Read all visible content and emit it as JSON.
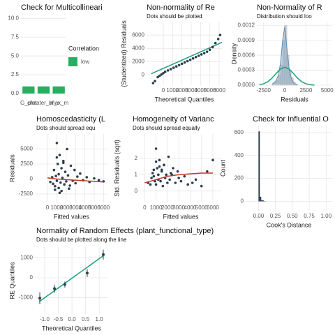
{
  "chart_data": [
    {
      "type": "bar",
      "title": "Check for Multicollineari",
      "categories": [
        "G_plot",
        "cheater_of_e",
        "lmax_m"
      ],
      "series": [
        {
          "name": "low",
          "color": "#27ae60",
          "values": [
            0.95,
            0.95,
            0.95
          ]
        }
      ],
      "legend_title": "Correlation",
      "ylim": [
        -0.55,
        10.4
      ],
      "yticks": [
        {
          "value": 0,
          "label": "0.0"
        },
        2.5,
        {
          "value": 5,
          "label": "5.0"
        },
        7.5,
        {
          "value": 10,
          "label": "10.0"
        }
      ],
      "grid": true
    },
    {
      "type": "scatter",
      "title": "Non-normality of Re",
      "subtitle": "Dots should be plotted",
      "xlabel": "Theoretical Quantiles",
      "ylabel": "(Studentized) Residuals",
      "x": [
        -1100,
        -900,
        -600,
        -400,
        -200,
        0,
        200,
        500,
        800,
        1100,
        1400,
        1700,
        2000,
        2300,
        2600,
        2900,
        3200,
        3500,
        3800,
        4100,
        4400,
        4700,
        5000,
        5300,
        5600,
        5900,
        6100
      ],
      "y": [
        -1200,
        -900,
        -300,
        -100,
        100,
        300,
        500,
        700,
        900,
        1100,
        1300,
        1500,
        1700,
        1900,
        2100,
        2300,
        2500,
        2700,
        2900,
        3100,
        3300,
        3500,
        3800,
        4200,
        4800,
        5400,
        6000
      ],
      "color": "#2c3e50",
      "reference_line": {
        "x": [
          -1300,
          6300
        ],
        "y": [
          200,
          4900
        ],
        "color": "#1b9e77"
      },
      "xlim": [
        -1800,
        6300
      ],
      "ylim": [
        -1500,
        7900
      ],
      "xticks": [
        0,
        1000,
        2000,
        3000,
        4000,
        5000,
        6000
      ],
      "yticks": [
        0,
        2000,
        4000,
        6000
      ],
      "grid": true
    },
    {
      "type": "histogram",
      "title": "Non-Normality of R",
      "subtitle": "Distribution should loo",
      "xlabel": "Residuals",
      "ylabel": "Density",
      "bins": [
        -1500,
        -1250,
        -1000,
        -750,
        -500,
        -250,
        0,
        250,
        500,
        750,
        1000,
        1250,
        1500
      ],
      "counts": [
        2e-05,
        5e-05,
        0.0001,
        0.0002,
        0.0004,
        0.0009,
        0.0012,
        0.0006,
        0.0003,
        0.00015,
        6e-05,
        2e-05
      ],
      "color": "#d9d9d9",
      "density": {
        "x": [
          -1500,
          -1250,
          -1000,
          -750,
          -500,
          -250,
          0,
          250,
          500,
          750,
          1000,
          1250,
          1500
        ],
        "y": [
          2e-05,
          5e-05,
          0.0001,
          0.0002,
          0.00045,
          0.0009,
          0.00118,
          0.00075,
          0.00035,
          0.00015,
          6e-05,
          2e-05,
          1e-05
        ],
        "color": "#5b8db8"
      },
      "normal_curve": {
        "x": [
          -3000,
          -2500,
          -2000,
          -1500,
          -1000,
          -500,
          0,
          500,
          1000,
          1500,
          2000,
          2500,
          3000,
          3500
        ],
        "y": [
          8.7e-06,
          2.7e-05,
          6.9e-05,
          0.000142,
          0.000238,
          0.000325,
          0.00036,
          0.000325,
          0.000238,
          0.000142,
          6.9e-05,
          2.7e-05,
          8.7e-06,
          2.3e-06
        ],
        "color": "#1b9e77"
      },
      "xlim": [
        -3300,
        5600
      ],
      "ylim": [
        0,
        0.00126
      ],
      "xticks": [
        -2500,
        0,
        2500,
        5000
      ],
      "yticks": [
        {
          "value": 0,
          "label": "0.0000"
        },
        0.0003,
        0.0006,
        0.0009,
        0.0012
      ],
      "grid": true
    },
    {
      "type": "scatter",
      "title": "Homoscedasticity (L",
      "subtitle": "Dots should spread equ",
      "xlabel": "Fitted values",
      "ylabel": "Residuals",
      "x": [
        300,
        500,
        600,
        700,
        800,
        900,
        1000,
        1000,
        1100,
        1200,
        1200,
        1300,
        1400,
        1500,
        1500,
        1600,
        1700,
        1800,
        1900,
        2000,
        2100,
        2200,
        2400,
        2500,
        2700,
        2900,
        3000,
        3200,
        3500,
        3800,
        4200,
        4500,
        5000,
        5500,
        6000,
        800,
        1300,
        1700,
        2300,
        1000
      ],
      "y": [
        -500,
        300,
        -800,
        1500,
        -1200,
        500,
        6000,
        -300,
        2500,
        -1500,
        800,
        4000,
        -600,
        1800,
        -2000,
        200,
        3000,
        -900,
        1200,
        -400,
        5000,
        600,
        -1100,
        2200,
        -300,
        1500,
        -700,
        400,
        900,
        -200,
        300,
        -500,
        100,
        -200,
        -400,
        -1800,
        -2300,
        2700,
        -1600,
        3600
      ],
      "color": "#2c3e50",
      "smooth": {
        "x": [
          0,
          1000,
          2000,
          3000,
          4000,
          5000,
          6000
        ],
        "y": [
          200,
          0,
          -100,
          -200,
          -300,
          -400,
          -500
        ],
        "color": "#c0392b"
      },
      "xlim": [
        -1350,
        6500
      ],
      "ylim": [
        -3900,
        7500
      ],
      "xticks": [
        0,
        1000,
        2000,
        3000,
        4000,
        5000,
        6000
      ],
      "yticks": [
        -2500,
        0,
        2500,
        5000
      ],
      "grid": true
    },
    {
      "type": "scatter",
      "title": "Homogeneity of Varianc",
      "subtitle": "Dots should spread equally",
      "xlabel": "Fitted values",
      "ylabel": "Std. Residuals (sqrt)",
      "x": [
        300,
        500,
        600,
        700,
        800,
        900,
        1000,
        1000,
        1100,
        1200,
        1200,
        1300,
        1400,
        1500,
        1500,
        1600,
        1700,
        1800,
        1900,
        2000,
        2100,
        2200,
        2400,
        2500,
        2700,
        2900,
        3000,
        3200,
        3500,
        3800,
        4200,
        4500,
        5000,
        5500,
        6000,
        800,
        1300,
        1700,
        2300,
        1000
      ],
      "y": [
        0.5,
        0.4,
        0.8,
        1.1,
        0.9,
        0.6,
        2.6,
        0.4,
        1.4,
        1.0,
        0.7,
        1.9,
        0.6,
        1.2,
        1.3,
        0.3,
        1.6,
        0.8,
        1.0,
        0.5,
        2.1,
        0.7,
        1.0,
        1.4,
        0.5,
        1.2,
        0.8,
        0.6,
        0.9,
        0.4,
        0.5,
        0.7,
        0.3,
        1.2,
        1.9,
        1.3,
        1.5,
        1.6,
        1.1,
        1.8
      ],
      "color": "#2c3e50",
      "smooth": {
        "x": [
          0,
          1000,
          2000,
          3000,
          4000,
          5000,
          6000
        ],
        "y": [
          0.5,
          0.7,
          0.9,
          1.0,
          1.05,
          1.1,
          1.1
        ],
        "color": "#c0392b"
      },
      "xlim": [
        -450,
        6800
      ],
      "ylim": [
        -0.7,
        3.5
      ],
      "xticks": [
        0,
        1000,
        2000,
        3000,
        4000,
        5000,
        6000
      ],
      "yticks": [
        0,
        1,
        2
      ],
      "grid": true
    },
    {
      "type": "histogram",
      "title": "Check for Influential O",
      "xlabel": "Cook's Distance",
      "ylabel": "Count",
      "bins": [
        0,
        0.02,
        0.04,
        0.06,
        0.08,
        0.1,
        0.12
      ],
      "counts": [
        610,
        40,
        12,
        8,
        2,
        1
      ],
      "color": "#2c3e50",
      "xlim": [
        -0.19,
        1.09
      ],
      "ylim": [
        -82,
        660
      ],
      "xticks": [
        {
          "value": 0,
          "label": "0.00"
        },
        0.25,
        {
          "value": 0.5,
          "label": "0.50"
        },
        0.75,
        {
          "value": 1,
          "label": "1.00"
        }
      ],
      "yticks": [
        0,
        200,
        400,
        600
      ],
      "grid": true
    },
    {
      "type": "scatter",
      "title": "Normality of Random Effects (plant_functional_type)",
      "subtitle": "Dots should be plotted along the line",
      "xlabel": "Theoretical Quantiles",
      "ylabel": "RE Quantiles",
      "x": [
        -1.18,
        -0.64,
        -0.26,
        0.56,
        1.15
      ],
      "y": [
        -1030,
        -550,
        -340,
        240,
        1170
      ],
      "error": [
        300,
        200,
        150,
        200,
        250
      ],
      "color": "#2c3e50",
      "reference_line": {
        "x": [
          -1.2,
          1.2
        ],
        "y": [
          -1200,
          1160
        ],
        "color": "#1b9e77"
      },
      "xlim": [
        -1.36,
        1.33
      ],
      "ylim": [
        -1830,
        1550
      ],
      "xticks": [
        {
          "value": -1,
          "label": "-1.0"
        },
        -0.5,
        {
          "value": 0,
          "label": "0.0"
        },
        0.5,
        {
          "value": 1,
          "label": "1.0"
        }
      ],
      "yticks": [
        -1000,
        0,
        1000
      ],
      "grid": true
    }
  ]
}
